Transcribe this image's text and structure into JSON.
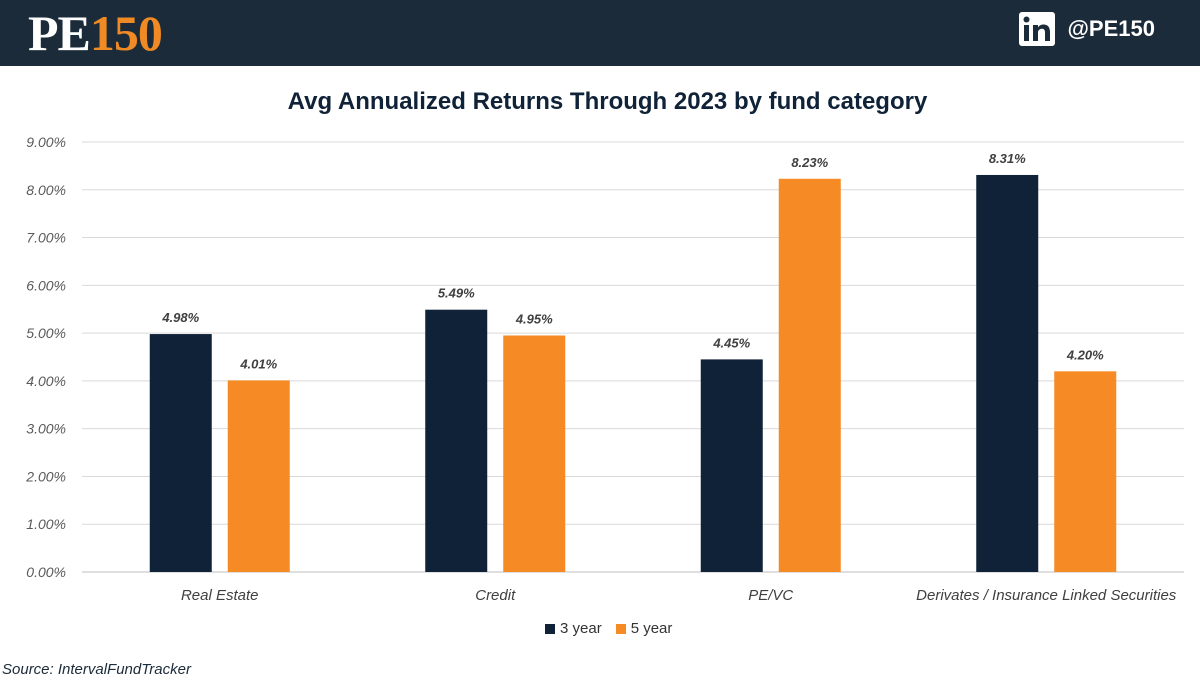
{
  "header": {
    "logo_pe": "PE",
    "logo_num": "150",
    "social_handle": "@PE150",
    "social_icon": "linkedin-icon",
    "bg_color": "#1c2b39",
    "accent_color": "#f08a24"
  },
  "source_text": "Source: IntervalFundTracker",
  "chart_data": {
    "type": "bar",
    "title": "Avg Annualized Returns Through 2023 by fund category",
    "xlabel": "",
    "ylabel": "",
    "categories": [
      "Real Estate",
      "Credit",
      "PE/VC",
      "Derivates / Insurance Linked Securities"
    ],
    "series": [
      {
        "name": "3 year",
        "values": [
          4.98,
          5.49,
          4.45,
          8.31
        ],
        "labels": [
          "4.98%",
          "5.49%",
          "4.45%",
          "8.31%"
        ],
        "color": "#0f2238"
      },
      {
        "name": "5 year",
        "values": [
          4.01,
          4.95,
          8.23,
          4.2
        ],
        "labels": [
          "4.01%",
          "4.95%",
          "8.23%",
          "4.20%"
        ],
        "color": "#f68a24"
      }
    ],
    "ylim": [
      0,
      9
    ],
    "yticks": [
      "0.00%",
      "1.00%",
      "2.00%",
      "3.00%",
      "4.00%",
      "5.00%",
      "6.00%",
      "7.00%",
      "8.00%",
      "9.00%"
    ],
    "grid": true,
    "legend_position": "bottom"
  }
}
